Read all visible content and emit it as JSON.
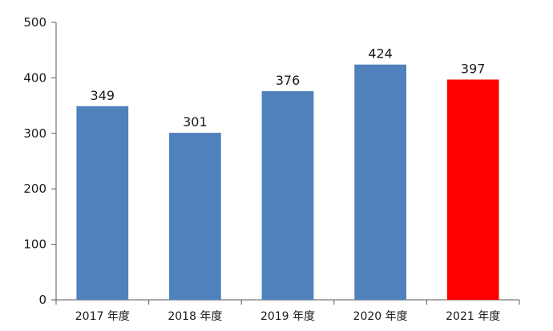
{
  "chart_data": {
    "type": "bar",
    "categories": [
      "2017 年度",
      "2018 年度",
      "2019 年度",
      "2020 年度",
      "2021 年度"
    ],
    "values": [
      349,
      301,
      376,
      424,
      397
    ],
    "data_labels": [
      "349",
      "301",
      "376",
      "424",
      "397"
    ],
    "yticks": [
      0,
      100,
      200,
      300,
      400,
      500
    ],
    "ytick_labels": [
      "0",
      "100",
      "200",
      "300",
      "400",
      "500"
    ],
    "ylim": [
      0,
      500
    ],
    "title": "",
    "xlabel": "",
    "ylabel": "",
    "grid": false,
    "legend": "none",
    "colors": {
      "default_bar": "#4f81bd",
      "highlight_bar": "#ff0000",
      "axis": "#595959"
    },
    "highlight_index": 4
  }
}
